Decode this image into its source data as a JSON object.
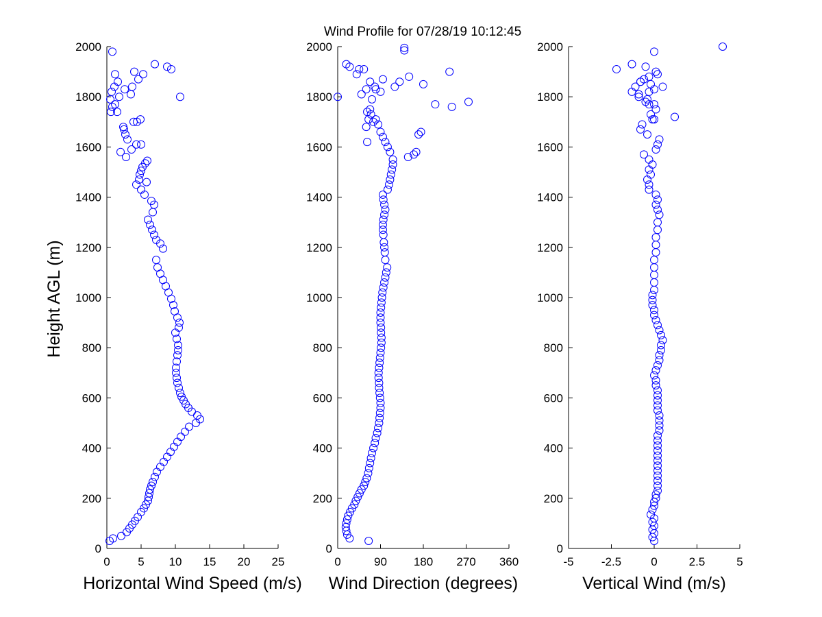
{
  "title": "Wind Profile for  07/28/19 10:12:45",
  "ylabel": "Height AGL (m)",
  "marker_color": "#0000ff",
  "chart_data": [
    {
      "type": "scatter",
      "xlabel": "Horizontal Wind Speed (m/s)",
      "ylabel": "Height AGL (m)",
      "xlim": [
        0,
        25
      ],
      "ylim": [
        0,
        2000
      ],
      "xticks": [
        "0",
        "5",
        "10",
        "15",
        "20",
        "25"
      ],
      "yticks": [
        "0",
        "200",
        "400",
        "600",
        "800",
        "1000",
        "1200",
        "1400",
        "1600",
        "1800",
        "2000"
      ],
      "grid": false,
      "x": [
        0.4,
        0.9,
        2.1,
        2.9,
        3.3,
        3.7,
        4.1,
        4.5,
        5.0,
        5.4,
        5.7,
        6.0,
        6.1,
        6.2,
        6.3,
        6.5,
        6.7,
        7.0,
        7.3,
        7.8,
        8.3,
        8.8,
        9.3,
        9.8,
        10.3,
        10.8,
        11.4,
        12.0,
        13.0,
        13.6,
        13.2,
        12.4,
        11.9,
        11.5,
        11.2,
        10.9,
        10.7,
        10.5,
        10.3,
        10.2,
        10.1,
        10.1,
        10.2,
        10.3,
        10.4,
        10.4,
        10.2,
        10.0,
        10.5,
        10.6,
        10.3,
        9.9,
        9.7,
        9.4,
        9.0,
        8.6,
        8.2,
        7.8,
        7.4,
        7.2,
        8.2,
        7.8,
        7.2,
        6.9,
        6.6,
        6.3,
        6.0,
        6.7,
        6.9,
        6.5,
        5.5,
        5.0,
        5.8,
        4.3,
        4.7,
        4.8,
        5.0,
        5.2,
        5.6,
        5.9,
        2.0,
        2.8,
        3.6,
        4.3,
        5.0,
        3.0,
        2.7,
        2.5,
        2.4,
        3.9,
        4.4,
        4.9,
        0.6,
        0.8,
        1.2,
        0.5,
        1.5,
        1.8,
        3.5,
        1.1,
        0.7,
        3.7,
        2.6,
        1.6,
        4.6,
        5.3,
        1.2,
        4.0,
        7.0,
        8.8,
        9.4,
        10.7,
        0.8
      ],
      "y": [
        30,
        40,
        50,
        65,
        80,
        95,
        110,
        125,
        145,
        160,
        175,
        190,
        205,
        220,
        235,
        250,
        265,
        285,
        305,
        325,
        345,
        365,
        385,
        405,
        425,
        445,
        465,
        485,
        500,
        515,
        530,
        545,
        560,
        575,
        590,
        605,
        620,
        640,
        660,
        680,
        700,
        720,
        745,
        770,
        790,
        810,
        835,
        860,
        880,
        900,
        920,
        945,
        970,
        995,
        1020,
        1045,
        1070,
        1095,
        1120,
        1150,
        1195,
        1215,
        1230,
        1250,
        1270,
        1290,
        1310,
        1340,
        1370,
        1385,
        1410,
        1430,
        1460,
        1450,
        1470,
        1490,
        1505,
        1520,
        1535,
        1545,
        1580,
        1560,
        1590,
        1610,
        1610,
        1630,
        1650,
        1670,
        1680,
        1700,
        1700,
        1710,
        1740,
        1760,
        1770,
        1790,
        1740,
        1800,
        1810,
        1840,
        1820,
        1840,
        1830,
        1860,
        1870,
        1890,
        1890,
        1900,
        1930,
        1920,
        1910,
        1800,
        1980
      ]
    },
    {
      "type": "scatter",
      "xlabel": "Wind Direction (degrees)",
      "ylabel": "",
      "xlim": [
        0,
        360
      ],
      "ylim": [
        0,
        2000
      ],
      "xticks": [
        "0",
        "90",
        "180",
        "270",
        "360"
      ],
      "yticks": [
        "0",
        "200",
        "400",
        "600",
        "800",
        "1000",
        "1200",
        "1400",
        "1600",
        "1800",
        "2000"
      ],
      "grid": false,
      "x": [
        65,
        25,
        20,
        18,
        17,
        18,
        20,
        22,
        26,
        30,
        35,
        38,
        42,
        46,
        50,
        55,
        58,
        61,
        64,
        66,
        68,
        70,
        72,
        75,
        78,
        80,
        83,
        85,
        87,
        88,
        89,
        90,
        90,
        89,
        88,
        87,
        87,
        86,
        86,
        87,
        88,
        89,
        90,
        91,
        92,
        92,
        91,
        91,
        90,
        90,
        90,
        91,
        92,
        93,
        94,
        96,
        98,
        100,
        102,
        104,
        100,
        99,
        98,
        97,
        96,
        95,
        95,
        96,
        98,
        100,
        98,
        96,
        95,
        105,
        108,
        110,
        112,
        114,
        116,
        116,
        110,
        105,
        100,
        95,
        90,
        60,
        75,
        85,
        80,
        70,
        68,
        65,
        62,
        72,
        90,
        80,
        50,
        0,
        68,
        78,
        120,
        130,
        140,
        140,
        148,
        160,
        165,
        170,
        175,
        205,
        240,
        275,
        235,
        180,
        150,
        95,
        60,
        45,
        18,
        25,
        40,
        55,
        62
      ],
      "y": [
        30,
        40,
        55,
        70,
        85,
        100,
        115,
        130,
        145,
        160,
        175,
        190,
        205,
        220,
        235,
        250,
        265,
        280,
        300,
        320,
        340,
        360,
        380,
        400,
        420,
        440,
        460,
        480,
        500,
        520,
        540,
        560,
        580,
        600,
        620,
        640,
        660,
        680,
        700,
        720,
        740,
        760,
        780,
        800,
        820,
        840,
        860,
        880,
        900,
        920,
        940,
        960,
        980,
        1000,
        1020,
        1040,
        1060,
        1080,
        1100,
        1120,
        1150,
        1180,
        1200,
        1220,
        1250,
        1270,
        1290,
        1310,
        1330,
        1350,
        1370,
        1390,
        1410,
        1430,
        1450,
        1470,
        1490,
        1510,
        1530,
        1550,
        1580,
        1600,
        1620,
        1640,
        1660,
        1680,
        1700,
        1690,
        1710,
        1730,
        1750,
        1710,
        1740,
        1790,
        1820,
        1830,
        1810,
        1800,
        1860,
        1840,
        1840,
        1860,
        1985,
        1995,
        1560,
        1570,
        1580,
        1650,
        1660,
        1770,
        1760,
        1780,
        1900,
        1850,
        1880,
        1870,
        1830,
        1910,
        1930,
        1920,
        1890,
        1910,
        1620
      ]
    },
    {
      "type": "scatter",
      "xlabel": "Vertical Wind (m/s)",
      "ylabel": "",
      "xlim": [
        -5,
        5
      ],
      "ylim": [
        0,
        2000
      ],
      "xticks": [
        "-5",
        "-2.5",
        "0",
        "2.5",
        "5"
      ],
      "yticks": [
        "0",
        "200",
        "400",
        "600",
        "800",
        "1000",
        "1200",
        "1400",
        "1600",
        "1800",
        "2000"
      ],
      "grid": false,
      "x": [
        0.0,
        -0.1,
        0.0,
        -0.1,
        0.0,
        -0.1,
        0.0,
        -0.2,
        -0.1,
        0.0,
        0.0,
        0.1,
        0.1,
        0.2,
        0.2,
        0.2,
        0.2,
        0.2,
        0.2,
        0.2,
        0.2,
        0.2,
        0.2,
        0.2,
        0.2,
        0.3,
        0.3,
        0.3,
        0.3,
        0.2,
        0.2,
        0.2,
        0.2,
        0.2,
        0.1,
        0.1,
        0.0,
        0.1,
        0.2,
        0.3,
        0.3,
        0.4,
        0.4,
        0.5,
        0.4,
        0.3,
        0.2,
        0.1,
        0.0,
        0.0,
        -0.1,
        -0.1,
        -0.1,
        0.0,
        0.0,
        0.0,
        0.0,
        0.0,
        0.1,
        0.1,
        0.1,
        0.2,
        0.2,
        0.3,
        0.2,
        0.1,
        0.2,
        0.1,
        -0.3,
        -0.3,
        -0.4,
        -0.2,
        -0.3,
        -0.1,
        -0.3,
        -0.6,
        0.1,
        0.2,
        0.3,
        -0.4,
        -0.8,
        -0.7,
        -0.1,
        -0.2,
        0.1,
        -0.3,
        -0.5,
        -0.9,
        -1.3,
        -1.1,
        -0.8,
        -0.6,
        -0.9,
        -0.4,
        -0.2,
        0.0,
        -0.3,
        0.1,
        0.0,
        1.2,
        0.5,
        -0.5,
        -2.2,
        -1.3,
        -0.8,
        -0.3,
        0.2,
        0.0,
        4.0,
        0.0
      ],
      "y": [
        30,
        45,
        60,
        75,
        90,
        105,
        120,
        135,
        155,
        170,
        185,
        200,
        215,
        230,
        250,
        270,
        290,
        310,
        330,
        350,
        370,
        390,
        410,
        430,
        450,
        470,
        490,
        510,
        530,
        550,
        570,
        590,
        610,
        630,
        650,
        670,
        690,
        710,
        730,
        750,
        770,
        790,
        810,
        830,
        850,
        870,
        890,
        910,
        930,
        950,
        970,
        990,
        1010,
        1030,
        1060,
        1090,
        1120,
        1150,
        1180,
        1210,
        1240,
        1270,
        1300,
        1330,
        1350,
        1370,
        1390,
        1410,
        1430,
        1450,
        1470,
        1490,
        1510,
        1530,
        1550,
        1570,
        1590,
        1610,
        1630,
        1650,
        1670,
        1690,
        1710,
        1730,
        1750,
        1770,
        1780,
        1800,
        1820,
        1840,
        1860,
        1870,
        1810,
        1790,
        1850,
        1830,
        1880,
        1900,
        1710,
        1720,
        1840,
        1920,
        1910,
        1930,
        1860,
        1820,
        1890,
        1980,
        2000,
        1770
      ]
    }
  ]
}
